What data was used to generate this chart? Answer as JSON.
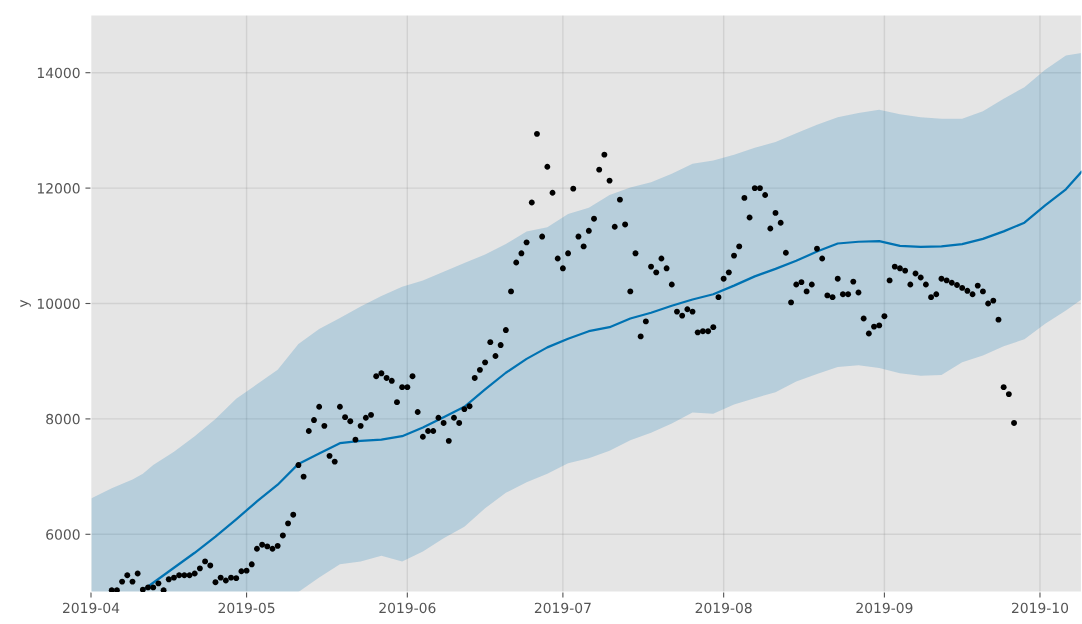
{
  "chart_data": {
    "type": "line",
    "ylabel": "y",
    "grid": true,
    "xlim": [
      "2019-04-01",
      "2019-10-09"
    ],
    "ylim": [
      5000,
      15000
    ],
    "xticks": [
      {
        "value": "2019-04-01",
        "label": "2019-04"
      },
      {
        "value": "2019-05-01",
        "label": "2019-05"
      },
      {
        "value": "2019-06-01",
        "label": "2019-06"
      },
      {
        "value": "2019-07-01",
        "label": "2019-07"
      },
      {
        "value": "2019-08-01",
        "label": "2019-08"
      },
      {
        "value": "2019-09-01",
        "label": "2019-09"
      },
      {
        "value": "2019-10-01",
        "label": "2019-10"
      }
    ],
    "yticks": [
      6000,
      8000,
      10000,
      12000,
      14000
    ],
    "series": [
      {
        "type": "scatter",
        "color": "#000000",
        "marker": "circle",
        "x": [
          "2019-04-05",
          "2019-04-06",
          "2019-04-07",
          "2019-04-08",
          "2019-04-09",
          "2019-04-10",
          "2019-04-11",
          "2019-04-12",
          "2019-04-13",
          "2019-04-14",
          "2019-04-15",
          "2019-04-16",
          "2019-04-17",
          "2019-04-18",
          "2019-04-19",
          "2019-04-20",
          "2019-04-21",
          "2019-04-22",
          "2019-04-23",
          "2019-04-24",
          "2019-04-25",
          "2019-04-26",
          "2019-04-27",
          "2019-04-28",
          "2019-04-29",
          "2019-04-30",
          "2019-05-01",
          "2019-05-02",
          "2019-05-03",
          "2019-05-04",
          "2019-05-05",
          "2019-05-06",
          "2019-05-07",
          "2019-05-08",
          "2019-05-09",
          "2019-05-10",
          "2019-05-11",
          "2019-05-12",
          "2019-05-13",
          "2019-05-14",
          "2019-05-15",
          "2019-05-16",
          "2019-05-17",
          "2019-05-18",
          "2019-05-19",
          "2019-05-20",
          "2019-05-21",
          "2019-05-22",
          "2019-05-23",
          "2019-05-24",
          "2019-05-25",
          "2019-05-26",
          "2019-05-27",
          "2019-05-28",
          "2019-05-29",
          "2019-05-30",
          "2019-05-31",
          "2019-06-01",
          "2019-06-02",
          "2019-06-03",
          "2019-06-04",
          "2019-06-05",
          "2019-06-06",
          "2019-06-07",
          "2019-06-08",
          "2019-06-09",
          "2019-06-10",
          "2019-06-11",
          "2019-06-12",
          "2019-06-13",
          "2019-06-14",
          "2019-06-15",
          "2019-06-16",
          "2019-06-17",
          "2019-06-18",
          "2019-06-19",
          "2019-06-20",
          "2019-06-21",
          "2019-06-22",
          "2019-06-23",
          "2019-06-24",
          "2019-06-25",
          "2019-06-26",
          "2019-06-27",
          "2019-06-28",
          "2019-06-29",
          "2019-06-30",
          "2019-07-01",
          "2019-07-02",
          "2019-07-03",
          "2019-07-04",
          "2019-07-05",
          "2019-07-06",
          "2019-07-07",
          "2019-07-08",
          "2019-07-09",
          "2019-07-10",
          "2019-07-11",
          "2019-07-12",
          "2019-07-13",
          "2019-07-14",
          "2019-07-15",
          "2019-07-16",
          "2019-07-17",
          "2019-07-18",
          "2019-07-19",
          "2019-07-20",
          "2019-07-21",
          "2019-07-22",
          "2019-07-23",
          "2019-07-24",
          "2019-07-25",
          "2019-07-26",
          "2019-07-27",
          "2019-07-28",
          "2019-07-29",
          "2019-07-30",
          "2019-07-31",
          "2019-08-01",
          "2019-08-02",
          "2019-08-03",
          "2019-08-04",
          "2019-08-05",
          "2019-08-06",
          "2019-08-07",
          "2019-08-08",
          "2019-08-09",
          "2019-08-10",
          "2019-08-11",
          "2019-08-12",
          "2019-08-13",
          "2019-08-14",
          "2019-08-15",
          "2019-08-16",
          "2019-08-17",
          "2019-08-18",
          "2019-08-19",
          "2019-08-20",
          "2019-08-21",
          "2019-08-22",
          "2019-08-23",
          "2019-08-24",
          "2019-08-25",
          "2019-08-26",
          "2019-08-27",
          "2019-08-28",
          "2019-08-29",
          "2019-08-30",
          "2019-08-31",
          "2019-09-01",
          "2019-09-02",
          "2019-09-03",
          "2019-09-04",
          "2019-09-05",
          "2019-09-06",
          "2019-09-07",
          "2019-09-08",
          "2019-09-09",
          "2019-09-10",
          "2019-09-11",
          "2019-09-12",
          "2019-09-13",
          "2019-09-14",
          "2019-09-15",
          "2019-09-16",
          "2019-09-17",
          "2019-09-18",
          "2019-09-19",
          "2019-09-20",
          "2019-09-21",
          "2019-09-22",
          "2019-09-23",
          "2019-09-24",
          "2019-09-25",
          "2019-09-26"
        ],
        "values": [
          5030,
          5030,
          5180,
          5290,
          5180,
          5320,
          5040,
          5080,
          5080,
          5150,
          5030,
          5220,
          5250,
          5290,
          5290,
          5290,
          5320,
          5410,
          5530,
          5460,
          5170,
          5250,
          5200,
          5250,
          5240,
          5360,
          5370,
          5480,
          5750,
          5820,
          5790,
          5750,
          5800,
          5980,
          6190,
          6340,
          7200,
          7000,
          7790,
          7980,
          8210,
          7880,
          7360,
          7260,
          8210,
          8030,
          7960,
          7640,
          7880,
          8020,
          8070,
          8740,
          8790,
          8710,
          8660,
          8290,
          8550,
          8550,
          8740,
          8120,
          7690,
          7790,
          7790,
          8020,
          7930,
          7620,
          8020,
          7930,
          8170,
          8220,
          8710,
          8850,
          8980,
          9330,
          9090,
          9280,
          9540,
          10210,
          10710,
          10870,
          11060,
          11750,
          12940,
          11160,
          12370,
          11920,
          10780,
          10610,
          10870,
          11990,
          11160,
          10990,
          11260,
          11470,
          12320,
          12580,
          12130,
          11330,
          11800,
          11370,
          10210,
          10870,
          9430,
          9690,
          10640,
          10540,
          10780,
          10610,
          10330,
          9860,
          9790,
          9900,
          9860,
          9500,
          9520,
          9520,
          9590,
          10110,
          10430,
          10540,
          10830,
          10990,
          11830,
          11490,
          12000,
          12000,
          11880,
          11300,
          11570,
          11400,
          10880,
          10020,
          10330,
          10370,
          10210,
          10330,
          10950,
          10780,
          10140,
          10110,
          10430,
          10160,
          10160,
          10380,
          10190,
          9740,
          9480,
          9600,
          9620,
          9780,
          10400,
          10640,
          10610,
          10570,
          10330,
          10520,
          10450,
          10330,
          10110,
          10160,
          10430,
          10400,
          10360,
          10320,
          10270,
          10220,
          10160,
          10310,
          10210,
          10000,
          10050,
          9720,
          8550,
          8430,
          7930
        ]
      },
      {
        "color": "#0072b2",
        "x": [
          "2019-04-01",
          "2019-04-05",
          "2019-04-09",
          "2019-04-11",
          "2019-04-13",
          "2019-04-17",
          "2019-04-21",
          "2019-04-25",
          "2019-04-29",
          "2019-05-03",
          "2019-05-07",
          "2019-05-11",
          "2019-05-15",
          "2019-05-19",
          "2019-05-23",
          "2019-05-27",
          "2019-05-31",
          "2019-06-04",
          "2019-06-08",
          "2019-06-12",
          "2019-06-16",
          "2019-06-20",
          "2019-06-24",
          "2019-06-28",
          "2019-07-02",
          "2019-07-06",
          "2019-07-10",
          "2019-07-14",
          "2019-07-18",
          "2019-07-22",
          "2019-07-26",
          "2019-07-30",
          "2019-08-03",
          "2019-08-07",
          "2019-08-11",
          "2019-08-15",
          "2019-08-19",
          "2019-08-23",
          "2019-08-27",
          "2019-08-31",
          "2019-09-04",
          "2019-09-08",
          "2019-09-12",
          "2019-09-16",
          "2019-09-20",
          "2019-09-24",
          "2019-09-28",
          "2019-10-02",
          "2019-10-06",
          "2019-10-09"
        ],
        "values": [
          null,
          null,
          null,
          5030,
          5160,
          5420,
          5680,
          5960,
          6260,
          6570,
          6860,
          7220,
          7400,
          7580,
          7620,
          7640,
          7700,
          7850,
          8030,
          8210,
          8510,
          8800,
          9040,
          9240,
          9390,
          9520,
          9590,
          9740,
          9840,
          9960,
          10070,
          10160,
          10310,
          10470,
          10600,
          10740,
          10900,
          11040,
          11070,
          11080,
          11000,
          10980,
          10990,
          11030,
          11120,
          11250,
          11400,
          11700,
          11980,
          12280
        ],
        "upper": [
          6620,
          6800,
          6950,
          7050,
          7200,
          7430,
          7700,
          8000,
          8350,
          8600,
          8850,
          9300,
          9560,
          9750,
          9950,
          10130,
          10290,
          10400,
          10550,
          10700,
          10850,
          11030,
          11250,
          11320,
          11550,
          11660,
          11880,
          12010,
          12100,
          12250,
          12420,
          12480,
          12580,
          12700,
          12800,
          12950,
          13100,
          13230,
          13300,
          13360,
          13280,
          13230,
          13200,
          13200,
          13330,
          13550,
          13750,
          14050,
          14300,
          14340
        ],
        "lower": [
          5000,
          5000,
          5000,
          5000,
          5000,
          5000,
          5000,
          5000,
          5000,
          5000,
          5000,
          5000,
          5250,
          5480,
          5530,
          5630,
          5530,
          5700,
          5930,
          6130,
          6450,
          6720,
          6900,
          7050,
          7230,
          7320,
          7450,
          7630,
          7760,
          7920,
          8110,
          8090,
          8250,
          8360,
          8460,
          8650,
          8780,
          8900,
          8930,
          8880,
          8790,
          8750,
          8760,
          8980,
          9100,
          9260,
          9380,
          9650,
          9880,
          10070
        ]
      }
    ]
  }
}
